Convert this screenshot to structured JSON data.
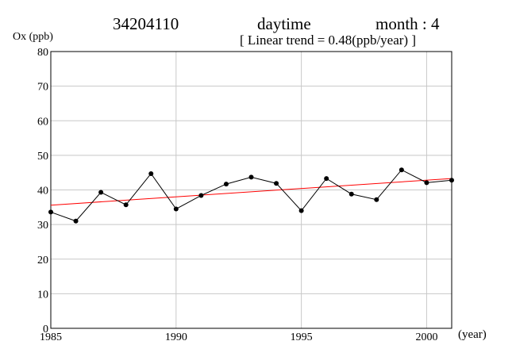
{
  "header": {
    "station": "34204110",
    "period": "daytime",
    "month": "month : 4",
    "trend_text": "[ Linear trend = 0.48(ppb/year) ]"
  },
  "chart_data": {
    "type": "line",
    "title": "34204110",
    "subtitle": "[ Linear trend = 0.48(ppb/year) ]",
    "xlabel": "(year)",
    "ylabel": "Ox (ppb)",
    "xlim": [
      1985,
      2001
    ],
    "ylim": [
      0,
      80
    ],
    "x_ticks": [
      1985,
      1990,
      1995,
      2000
    ],
    "y_ticks": [
      0,
      10,
      20,
      30,
      40,
      50,
      60,
      70,
      80
    ],
    "grid": true,
    "series": [
      {
        "color": "#000000",
        "marker": "circle",
        "x": [
          1985,
          1986,
          1987,
          1988,
          1989,
          1990,
          1991,
          1992,
          1993,
          1994,
          1995,
          1996,
          1997,
          1998,
          1999,
          2000,
          2001
        ],
        "y": [
          33.6,
          31.0,
          39.3,
          35.7,
          44.7,
          34.5,
          38.4,
          41.7,
          43.7,
          41.9,
          34.0,
          43.3,
          38.8,
          37.2,
          45.8,
          42.1,
          42.8
        ]
      }
    ],
    "trend_line": {
      "color": "#ff0000",
      "slope_ppb_per_year": 0.48,
      "x": [
        1985,
        2001
      ],
      "y": [
        35.6,
        43.3
      ]
    }
  }
}
